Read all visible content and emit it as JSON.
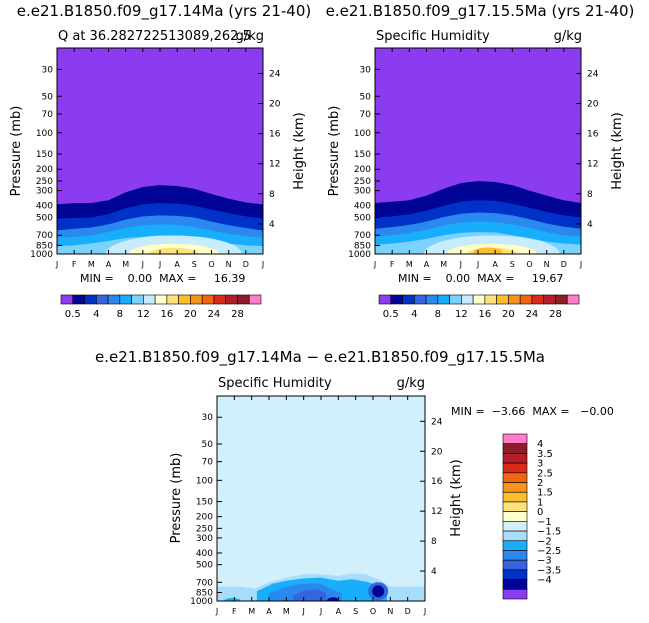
{
  "panels": [
    {
      "title": "e.e21.B1850.f09_g17.14Ma (yrs 21-40)",
      "subtitle_left": "Q at 36.282722513089,262.5",
      "subtitle_right": "g/kg",
      "ylabel_left": "Pressure (mb)",
      "ylabel_right": "Height (km)",
      "minmax_text": "MIN =    0.00  MAX =     16.39"
    },
    {
      "title": "e.e21.B1850.f09_g17.15.5Ma (yrs 21-40)",
      "subtitle_left": "Specific Humidity",
      "subtitle_right": "g/kg",
      "ylabel_left": "Pressure (mb)",
      "ylabel_right": "Height (km)",
      "minmax_text": "MIN =    0.00  MAX =     19.67"
    },
    {
      "title": "e.e21.B1850.f09_g17.14Ma − e.e21.B1850.f09_g17.15.5Ma",
      "subtitle_left": "Specific Humidity",
      "subtitle_right": "g/kg",
      "ylabel_left": "Pressure (mb)",
      "ylabel_right": "Height (km)",
      "minmax_text": "MIN =  −3.66  MAX =   −0.00"
    }
  ],
  "chart_data": [
    {
      "type": "heatmap",
      "title": "e.e21.B1850.f09_g17.14Ma (yrs 21-40)",
      "subtitle": "Q at 36.282722513089,262.5",
      "units": "g/kg",
      "xlabel": "",
      "ylabel": "Pressure (mb)",
      "y2label": "Height (km)",
      "x_ticks": [
        "J",
        "F",
        "M",
        "A",
        "M",
        "J",
        "J",
        "A",
        "S",
        "O",
        "N",
        "D",
        "J"
      ],
      "y_ticks": [
        30,
        50,
        70,
        100,
        150,
        200,
        250,
        300,
        400,
        500,
        700,
        850,
        1000
      ],
      "y2_ticks": [
        4,
        8,
        12,
        16,
        20,
        24
      ],
      "ylim": [
        1000,
        20
      ],
      "y_scale": "log",
      "min": 0.0,
      "max": 16.39,
      "colorbar_ticks": [
        "0.5",
        "4",
        "8",
        "12",
        "16",
        "20",
        "24",
        "28"
      ],
      "colorbar_colors": [
        "#8c3cf0",
        "#000596",
        "#0032c8",
        "#3564e0",
        "#2b88ef",
        "#19aefb",
        "#7bd2fd",
        "#c8ecfc",
        "#ffffc8",
        "#fde27a",
        "#fcbe2c",
        "#f8941a",
        "#f06414",
        "#dc2a18",
        "#b41e2a",
        "#8c1e2a",
        "#ff7cc8"
      ],
      "profile": [
        {
          "month": "J",
          "top": 390,
          "c05": 510,
          "c2": 640,
          "c4": 735,
          "c8": 860
        },
        {
          "month": "F",
          "top": 380,
          "c05": 505,
          "c2": 620,
          "c4": 725,
          "c8": 850
        },
        {
          "month": "M",
          "top": 380,
          "c05": 500,
          "c2": 605,
          "c4": 700,
          "c8": 820
        },
        {
          "month": "A",
          "top": 360,
          "c05": 470,
          "c2": 570,
          "c4": 660,
          "c8": 780
        },
        {
          "month": "M",
          "top": 310,
          "c05": 420,
          "c2": 520,
          "c4": 610,
          "c8": 740
        },
        {
          "month": "J",
          "top": 280,
          "c05": 390,
          "c2": 490,
          "c4": 580,
          "c8": 720
        },
        {
          "month": "J",
          "top": 270,
          "c05": 380,
          "c2": 480,
          "c4": 570,
          "c8": 700
        },
        {
          "month": "A",
          "top": 275,
          "c05": 385,
          "c2": 485,
          "c4": 575,
          "c8": 710
        },
        {
          "month": "S",
          "top": 290,
          "c05": 400,
          "c2": 500,
          "c4": 600,
          "c8": 740
        },
        {
          "month": "O",
          "top": 320,
          "c05": 430,
          "c2": 540,
          "c4": 640,
          "c8": 780
        },
        {
          "month": "N",
          "top": 350,
          "c05": 460,
          "c2": 580,
          "c4": 680,
          "c8": 820
        },
        {
          "month": "D",
          "top": 375,
          "c05": 490,
          "c2": 610,
          "c4": 710,
          "c8": 850
        },
        {
          "month": "J",
          "top": 390,
          "c05": 510,
          "c2": 640,
          "c4": 735,
          "c8": 860
        }
      ]
    },
    {
      "type": "heatmap",
      "title": "e.e21.B1850.f09_g17.15.5Ma (yrs 21-40)",
      "subtitle": "Specific Humidity",
      "units": "g/kg",
      "xlabel": "",
      "ylabel": "Pressure (mb)",
      "y2label": "Height (km)",
      "x_ticks": [
        "J",
        "F",
        "M",
        "A",
        "M",
        "J",
        "J",
        "A",
        "S",
        "O",
        "N",
        "D",
        "J"
      ],
      "y_ticks": [
        30,
        50,
        70,
        100,
        150,
        200,
        250,
        300,
        400,
        500,
        700,
        850,
        1000
      ],
      "y2_ticks": [
        4,
        8,
        12,
        16,
        20,
        24
      ],
      "ylim": [
        1000,
        20
      ],
      "y_scale": "log",
      "min": 0.0,
      "max": 19.67,
      "colorbar_ticks": [
        "0.5",
        "4",
        "8",
        "12",
        "16",
        "20",
        "24",
        "28"
      ],
      "colorbar_colors": [
        "#8c3cf0",
        "#000596",
        "#0032c8",
        "#3564e0",
        "#2b88ef",
        "#19aefb",
        "#7bd2fd",
        "#c8ecfc",
        "#ffffc8",
        "#fde27a",
        "#fcbe2c",
        "#f8941a",
        "#f06414",
        "#dc2a18",
        "#b41e2a",
        "#8c1e2a",
        "#ff7cc8"
      ],
      "profile": [
        {
          "month": "J",
          "top": 380,
          "c05": 500,
          "c2": 620,
          "c4": 720,
          "c8": 840
        },
        {
          "month": "F",
          "top": 370,
          "c05": 490,
          "c2": 600,
          "c4": 700,
          "c8": 820
        },
        {
          "month": "M",
          "top": 360,
          "c05": 470,
          "c2": 575,
          "c4": 670,
          "c8": 790
        },
        {
          "month": "A",
          "top": 330,
          "c05": 440,
          "c2": 540,
          "c4": 630,
          "c8": 750
        },
        {
          "month": "M",
          "top": 290,
          "c05": 400,
          "c2": 495,
          "c4": 580,
          "c8": 700
        },
        {
          "month": "J",
          "top": 260,
          "c05": 370,
          "c2": 465,
          "c4": 550,
          "c8": 670
        },
        {
          "month": "J",
          "top": 250,
          "c05": 360,
          "c2": 455,
          "c4": 540,
          "c8": 660
        },
        {
          "month": "A",
          "top": 255,
          "c05": 365,
          "c2": 460,
          "c4": 545,
          "c8": 665
        },
        {
          "month": "S",
          "top": 270,
          "c05": 385,
          "c2": 480,
          "c4": 570,
          "c8": 700
        },
        {
          "month": "O",
          "top": 300,
          "c05": 415,
          "c2": 515,
          "c4": 610,
          "c8": 740
        },
        {
          "month": "N",
          "top": 330,
          "c05": 450,
          "c2": 560,
          "c4": 660,
          "c8": 790
        },
        {
          "month": "D",
          "top": 360,
          "c05": 480,
          "c2": 595,
          "c4": 700,
          "c8": 820
        },
        {
          "month": "J",
          "top": 380,
          "c05": 500,
          "c2": 620,
          "c4": 720,
          "c8": 840
        }
      ]
    },
    {
      "type": "heatmap",
      "title": "e.e21.B1850.f09_g17.14Ma − e.e21.B1850.f09_g17.15.5Ma",
      "subtitle": "Specific Humidity",
      "units": "g/kg",
      "xlabel": "",
      "ylabel": "Pressure (mb)",
      "y2label": "Height (km)",
      "x_ticks": [
        "J",
        "F",
        "M",
        "A",
        "M",
        "J",
        "J",
        "A",
        "S",
        "O",
        "N",
        "D",
        "J"
      ],
      "y_ticks": [
        30,
        50,
        70,
        100,
        150,
        200,
        250,
        300,
        400,
        500,
        700,
        850,
        1000
      ],
      "y2_ticks": [
        4,
        8,
        12,
        16,
        20,
        24
      ],
      "ylim": [
        1000,
        20
      ],
      "y_scale": "log",
      "min": -3.66,
      "max": -0.0,
      "colorbar_ticks": [
        "4",
        "3.5",
        "3",
        "2.5",
        "2",
        "1.5",
        "1",
        "0",
        "−1",
        "−1.5",
        "−2",
        "−2.5",
        "−3",
        "−3.5",
        "−4"
      ],
      "colorbar_colors": [
        "#ff7cc8",
        "#8c1e2a",
        "#b41e2a",
        "#dc2a18",
        "#f06414",
        "#f8941a",
        "#fcbe2c",
        "#fde27a",
        "#ffffc8",
        "#d2f0fc",
        "#a6dcfc",
        "#19aefb",
        "#2b88ef",
        "#3564e0",
        "#0032c8",
        "#000596",
        "#8c3cf0"
      ],
      "background_level": "0 to −0.5",
      "features": [
        {
          "level": "−0.5 to −1",
          "month_span": [
            "M",
            "O"
          ],
          "pressure_top": 600
        },
        {
          "level": "−1 to −1.5",
          "month_span": [
            "A",
            "S"
          ],
          "pressure_top": 660
        },
        {
          "level": "−1.5 to −2",
          "month_span": [
            "A",
            "S"
          ],
          "pressure_top": 760
        },
        {
          "level": "−2.5 to −3.5",
          "month": "O",
          "pressure_center": 800
        }
      ]
    }
  ]
}
